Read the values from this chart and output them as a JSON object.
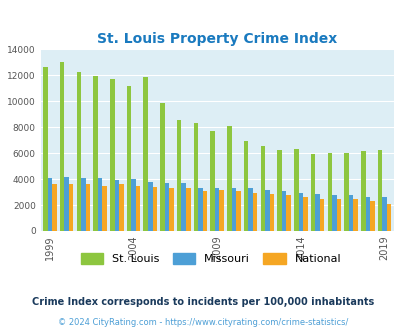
{
  "title": "St. Louis Property Crime Index",
  "title_color": "#1a7abf",
  "years": [
    1999,
    2000,
    2001,
    2002,
    2003,
    2004,
    2005,
    2006,
    2007,
    2008,
    2009,
    2010,
    2011,
    2012,
    2013,
    2014,
    2015,
    2016,
    2017,
    2018,
    2019,
    2020
  ],
  "stlouis": [
    12650,
    13050,
    12250,
    11950,
    11700,
    11150,
    11900,
    9850,
    8550,
    8350,
    7700,
    8100,
    6950,
    6550,
    6250,
    6350,
    5950,
    6050,
    6000,
    6200,
    6250,
    null
  ],
  "missouri": [
    4050,
    4200,
    4050,
    4050,
    3900,
    4000,
    3800,
    3700,
    3700,
    3350,
    3300,
    3350,
    3300,
    3150,
    3050,
    2900,
    2850,
    2800,
    2750,
    2650,
    2600,
    null
  ],
  "national": [
    3600,
    3650,
    3600,
    3500,
    3600,
    3500,
    3400,
    3350,
    3300,
    3050,
    3200,
    3100,
    2950,
    2850,
    2750,
    2600,
    2500,
    2450,
    2450,
    2300,
    2050,
    null
  ],
  "stlouis_color": "#8dc63f",
  "missouri_color": "#4d9fd6",
  "national_color": "#f5a623",
  "plot_bg_color": "#ddeef5",
  "ylim": [
    0,
    14000
  ],
  "yticks": [
    0,
    2000,
    4000,
    6000,
    8000,
    10000,
    12000,
    14000
  ],
  "xtick_years": [
    1999,
    2004,
    2009,
    2014,
    2019
  ],
  "subtitle": "Crime Index corresponds to incidents per 100,000 inhabitants",
  "subtitle_color": "#1a3a5c",
  "footnote": "© 2024 CityRating.com - https://www.cityrating.com/crime-statistics/",
  "footnote_color": "#4d9fd6",
  "bar_width": 0.27,
  "legend_labels": [
    "St. Louis",
    "Missouri",
    "National"
  ]
}
